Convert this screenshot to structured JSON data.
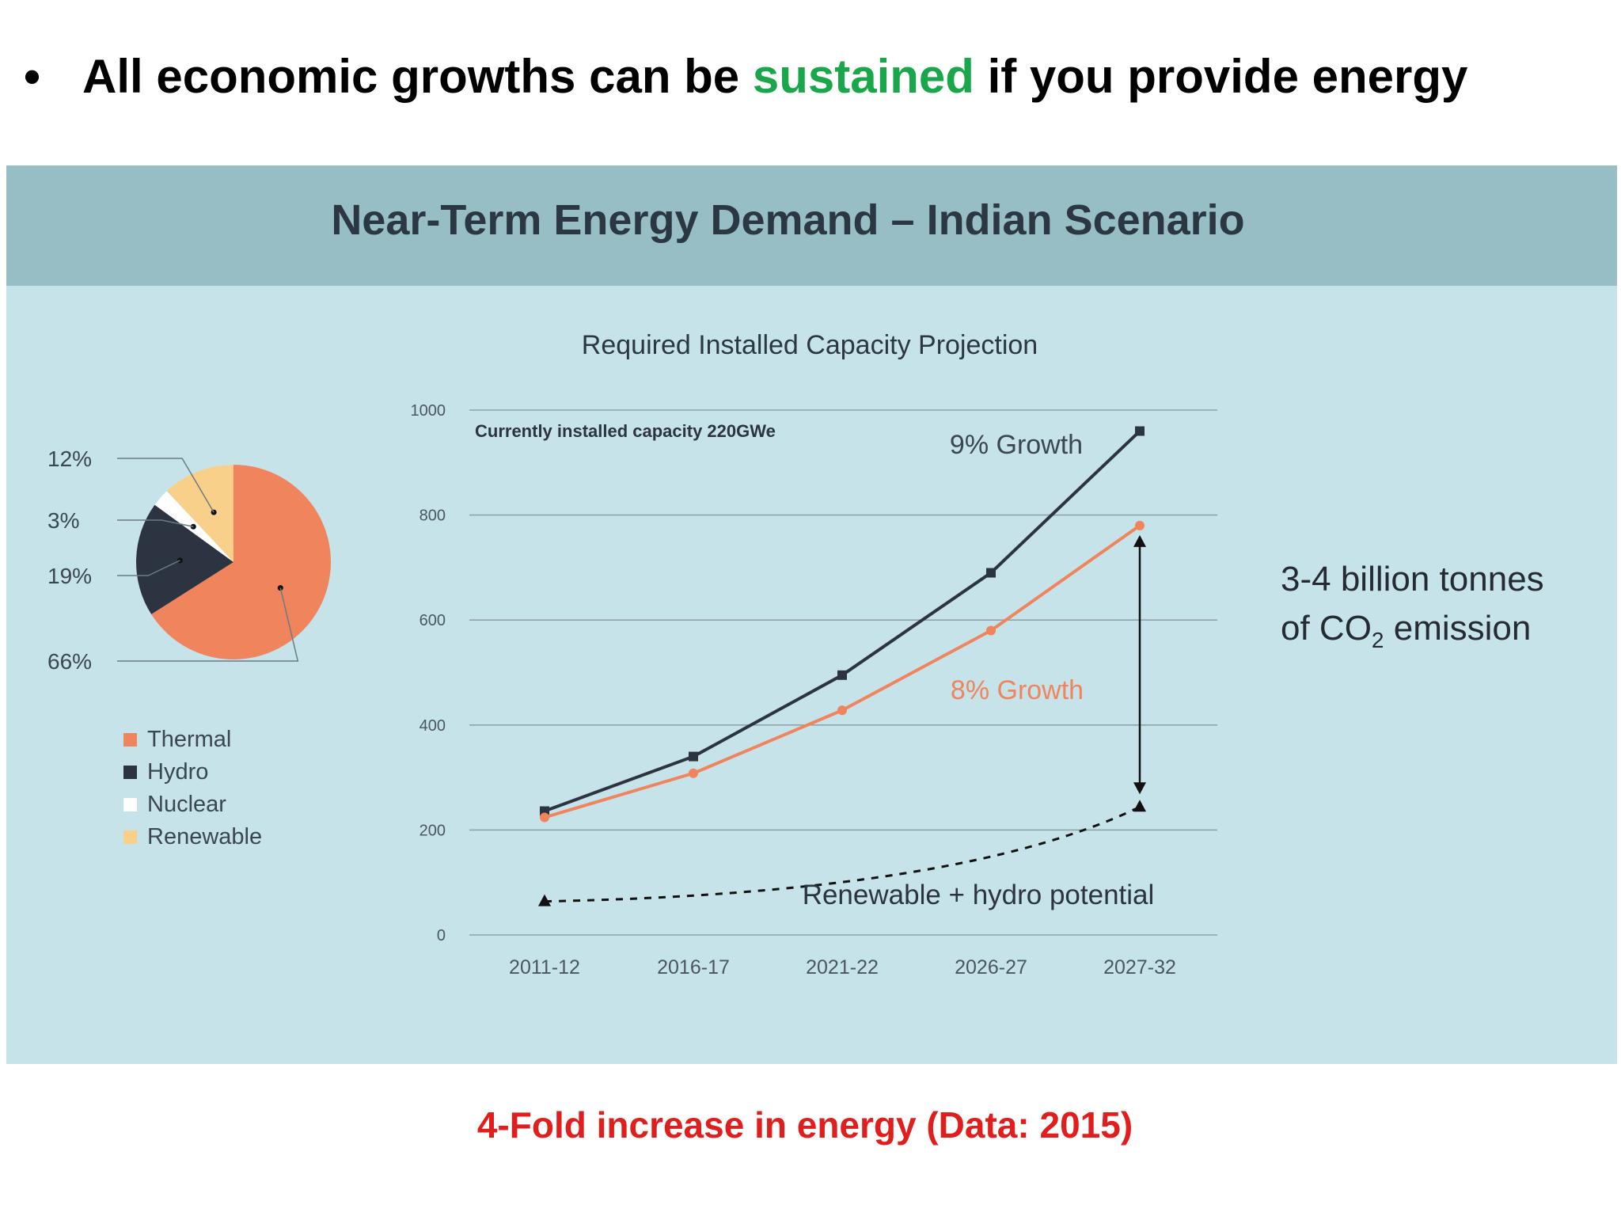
{
  "slide": {
    "bullet_before": "All economic growths can be ",
    "bullet_highlight": "sustained",
    "bullet_after": " if you provide energy",
    "highlight_color": "#1aa64a",
    "caption": "4-Fold increase in energy (Data: 2015)",
    "caption_color": "#e01e1e"
  },
  "figure": {
    "banner_title": "Near-Term Energy Demand – Indian Scenario",
    "co2_line1": "3-4 billion tonnes",
    "co2_line2_prefix": "of CO",
    "co2_line2_sub": "2",
    "co2_line2_suffix": " emission"
  },
  "chart_data": [
    {
      "type": "pie",
      "slices": [
        {
          "label": "Thermal",
          "value": 66,
          "text": "66%",
          "color": "#f0845c"
        },
        {
          "label": "Hydro",
          "value": 19,
          "text": "19%",
          "color": "#2b3440"
        },
        {
          "label": "Nuclear",
          "value": 3,
          "text": "3%",
          "color": "#ffffff"
        },
        {
          "label": "Renewable",
          "value": 12,
          "text": "12%",
          "color": "#f9d08a"
        }
      ],
      "legend": [
        "Thermal",
        "Hydro",
        "Nuclear",
        "Renewable"
      ],
      "legend_placement": "bottom"
    },
    {
      "type": "line",
      "title": "Required Installed Capacity Projection",
      "categories": [
        "2011-12",
        "2016-17",
        "2021-22",
        "2026-27",
        "2027-32"
      ],
      "ylim": [
        0,
        1000
      ],
      "yticks": [
        0,
        200,
        400,
        600,
        800,
        1000
      ],
      "grid": true,
      "annotation": "Currently installed capacity  220GWe",
      "series": [
        {
          "name": "9% Growth",
          "values": [
            236,
            340,
            495,
            690,
            960
          ],
          "color": "#2b3440",
          "style": "solid"
        },
        {
          "name": "8% Growth",
          "values": [
            224,
            308,
            428,
            580,
            780
          ],
          "color": "#f0845c",
          "style": "solid"
        },
        {
          "name": "Renewable + hydro potential",
          "values": [
            64,
            null,
            null,
            null,
            244
          ],
          "color": "#111111",
          "style": "dashed"
        }
      ]
    }
  ]
}
